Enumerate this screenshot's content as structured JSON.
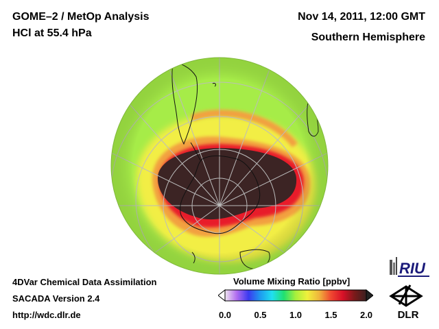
{
  "header": {
    "title_line1": "GOME–2 / MetOp Analysis",
    "title_line2": "HCl at 55.4 hPa",
    "date": "Nov 14, 2011, 12:00 GMT",
    "hemisphere": "Southern Hemisphere"
  },
  "footer": {
    "system": "4DVar Chemical Data Assimilation",
    "version": "SACADA Version 2.4",
    "url": "http://wdc.dlr.de"
  },
  "colorbar": {
    "title": "Volume Mixing Ratio [ppbv]",
    "min": 0.0,
    "max": 2.0,
    "ticks": [
      "0.0",
      "0.5",
      "1.0",
      "1.5",
      "2.0"
    ],
    "colors": [
      "#f0e6f0",
      "#b06cf0",
      "#3a3af0",
      "#1e9bf0",
      "#20e0f0",
      "#20e070",
      "#a8f03c",
      "#f0f03c",
      "#f0b43c",
      "#f04830",
      "#d81028",
      "#7a1a1a",
      "#3a2020"
    ]
  },
  "map_colors": {
    "background_field": "#a6ec48",
    "mid_band": "#f2ee44",
    "orange_band": "#f2a040",
    "red_band": "#e81e2a",
    "vortex_core": "#3c2424",
    "graticule": "#bcbcbc",
    "coastline": "#111111"
  },
  "logos": {
    "riu": "RIU",
    "dlr": "DLR"
  }
}
